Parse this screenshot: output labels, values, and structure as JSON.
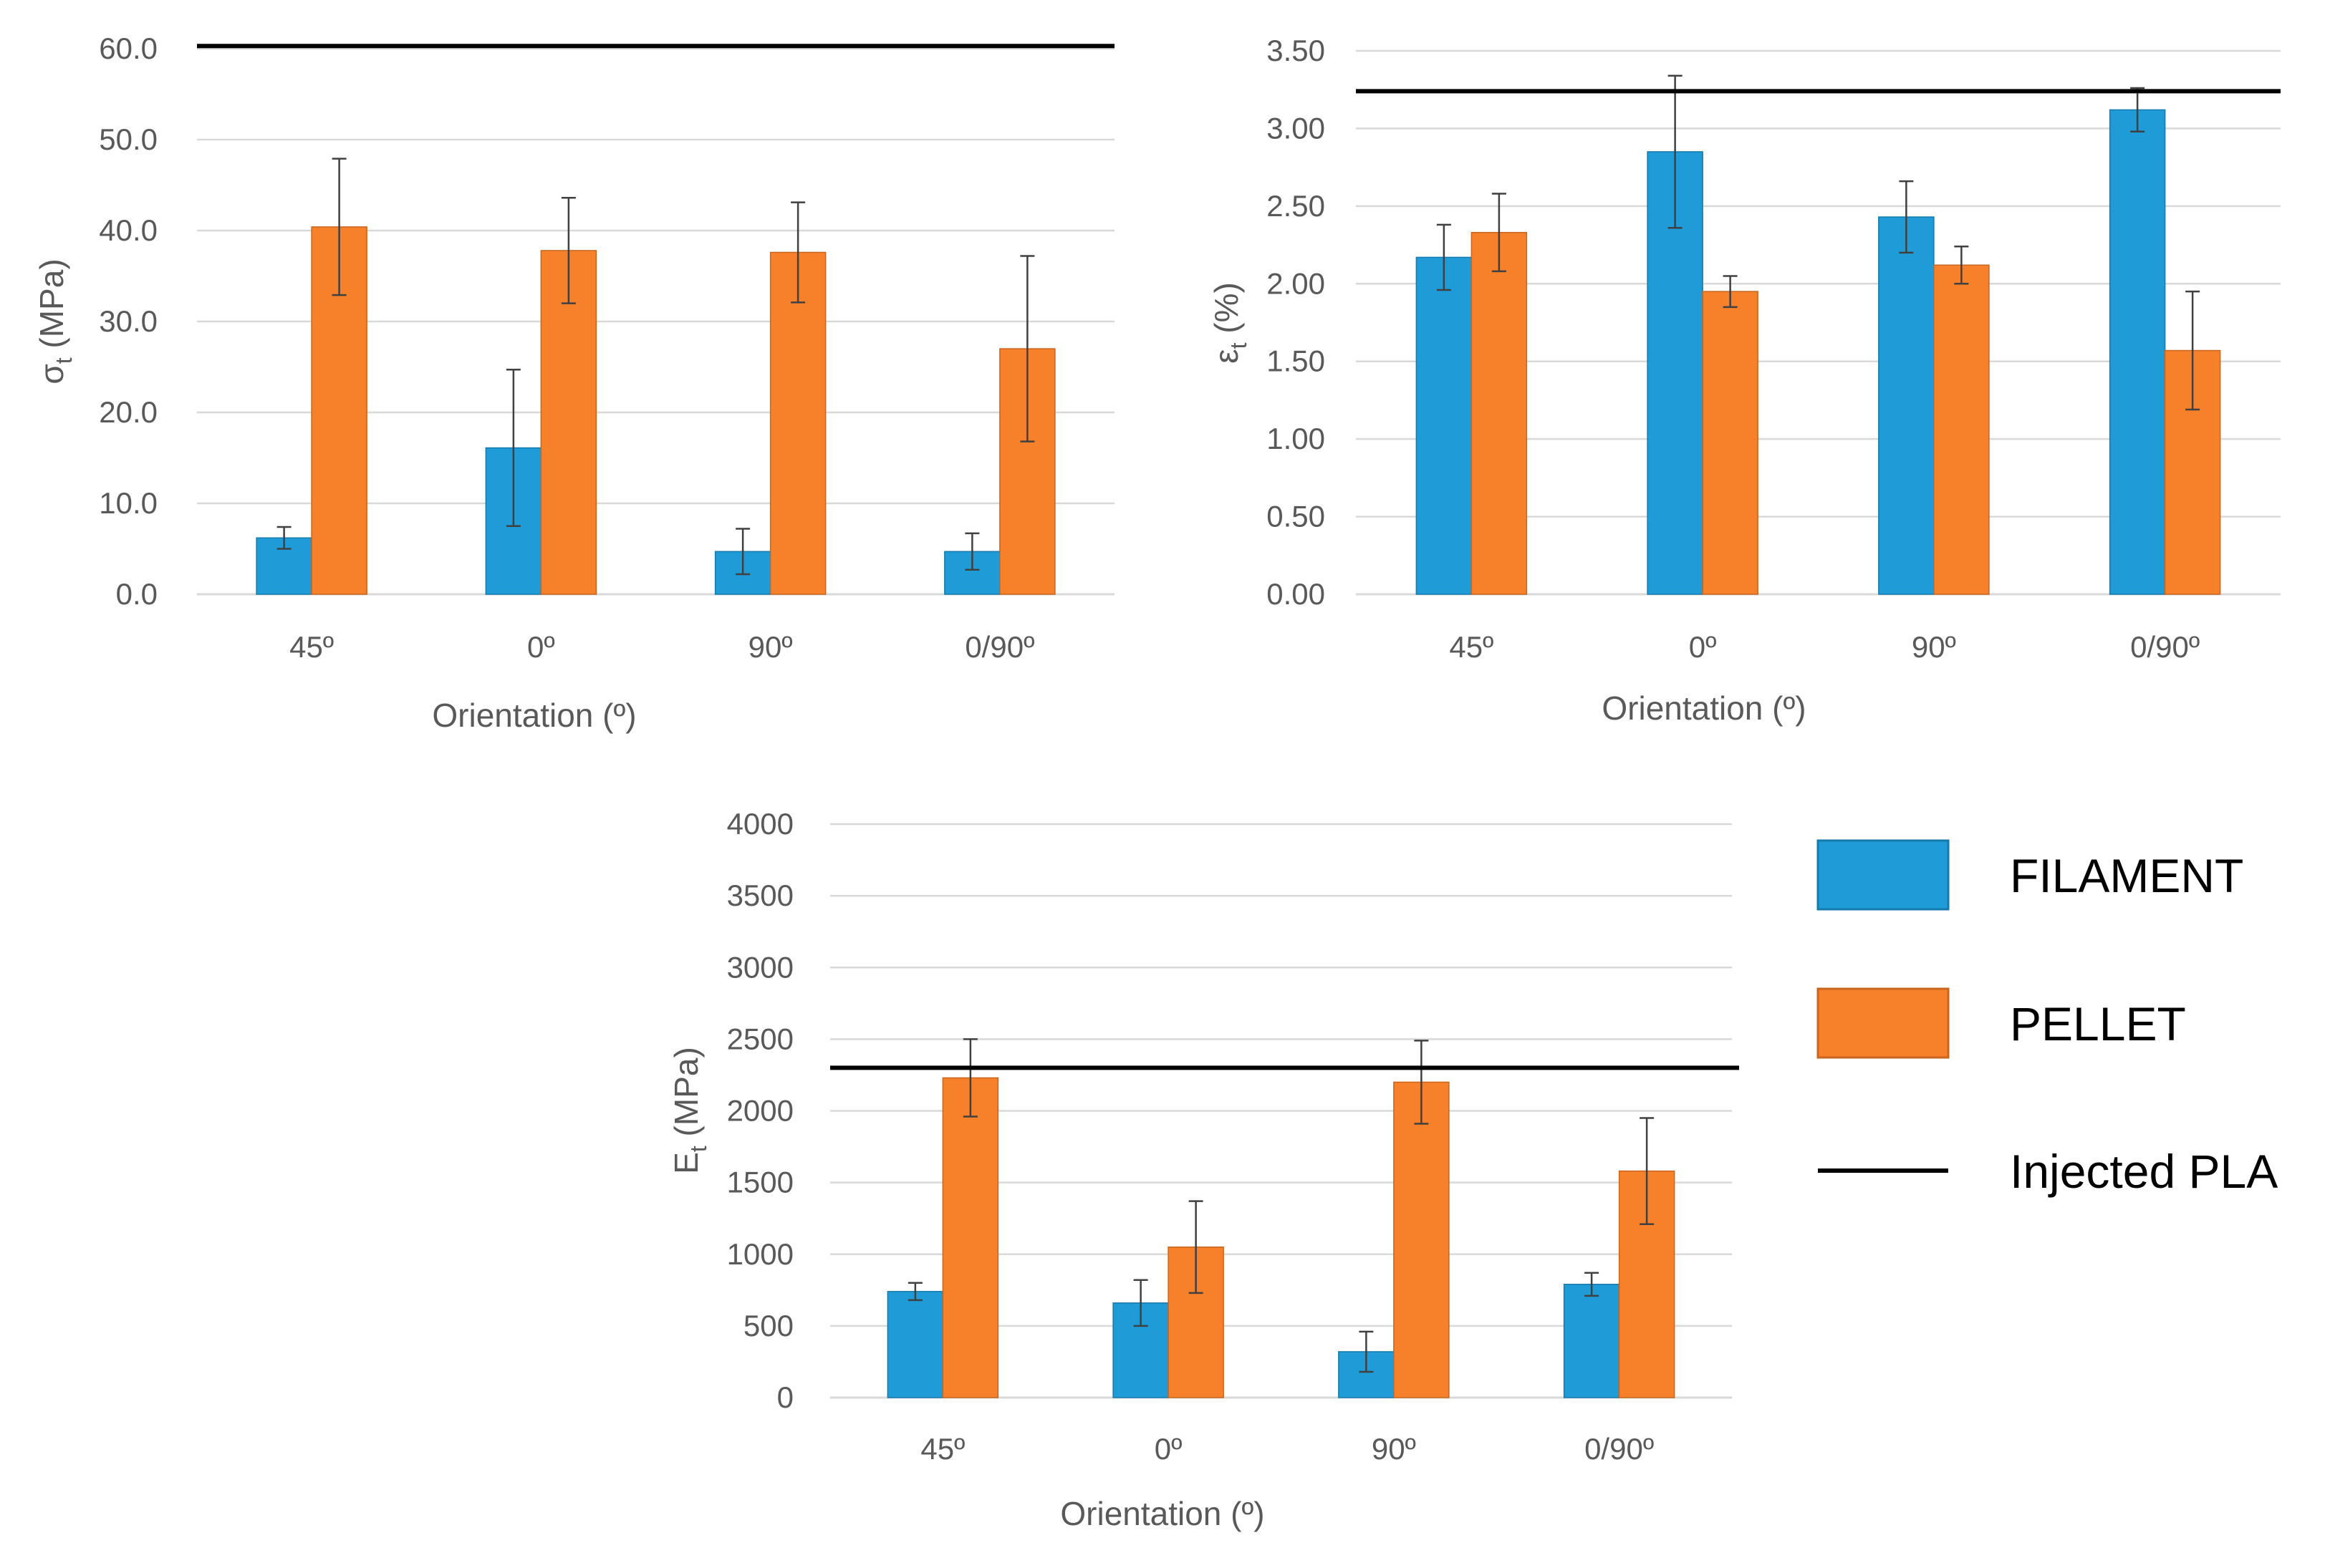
{
  "colors": {
    "filament": "#1f9bd7",
    "filament_edge": "#157aad",
    "pellet": "#f7802a",
    "pellet_edge": "#c9651d",
    "reference": "#000000"
  },
  "legend": [
    {
      "key": "filament",
      "label": "FILAMENT",
      "marker": "box"
    },
    {
      "key": "pellet",
      "label": "PELLET",
      "marker": "box"
    },
    {
      "key": "reference",
      "label": "Injected PLA",
      "marker": "line"
    }
  ],
  "chart_data": [
    {
      "type": "bar",
      "id": "stress",
      "title": "",
      "xlabel": "Orientation (º)",
      "ylabel_main": "σ",
      "ylabel_sub": "t",
      "ylabel_unit": " (MPa)",
      "categories": [
        "45º",
        "0º",
        "90º",
        "0/90º"
      ],
      "ylim": [
        0,
        60
      ],
      "yticks": [
        "0.0",
        "10.0",
        "20.0",
        "30.0",
        "40.0",
        "50.0",
        "60.0"
      ],
      "series": [
        {
          "name": "FILAMENT",
          "key": "filament",
          "values": [
            6.2,
            16.1,
            4.7,
            4.7
          ],
          "errors": [
            1.2,
            8.6,
            2.5,
            2.0
          ]
        },
        {
          "name": "PELLET",
          "key": "pellet",
          "values": [
            40.4,
            37.8,
            37.6,
            27.0
          ],
          "errors": [
            7.5,
            5.8,
            5.5,
            10.2
          ]
        }
      ],
      "reference": {
        "name": "Injected PLA",
        "value": 60.3
      }
    },
    {
      "type": "bar",
      "id": "strain",
      "title": "",
      "xlabel": "Orientation (º)",
      "ylabel_main": "ε",
      "ylabel_sub": "t",
      "ylabel_unit": " (%)",
      "categories": [
        "45º",
        "0º",
        "90º",
        "0/90º"
      ],
      "ylim": [
        0,
        3.5
      ],
      "yticks": [
        "0.00",
        "0.50",
        "1.00",
        "1.50",
        "2.00",
        "2.50",
        "3.00",
        "3.50"
      ],
      "series": [
        {
          "name": "FILAMENT",
          "key": "filament",
          "values": [
            2.17,
            2.85,
            2.43,
            3.12
          ],
          "errors": [
            0.21,
            0.49,
            0.23,
            0.14
          ]
        },
        {
          "name": "PELLET",
          "key": "pellet",
          "values": [
            2.33,
            1.95,
            2.12,
            1.57
          ],
          "errors": [
            0.25,
            0.1,
            0.12,
            0.38
          ]
        }
      ],
      "reference": {
        "name": "Injected PLA",
        "value": 3.24
      }
    },
    {
      "type": "bar",
      "id": "modulus",
      "title": "",
      "xlabel": "Orientation (º)",
      "ylabel_main": "E",
      "ylabel_sub": "t",
      "ylabel_unit": " (MPa)",
      "categories": [
        "45º",
        "0º",
        "90º",
        "0/90º"
      ],
      "ylim": [
        0,
        4000
      ],
      "yticks": [
        "0",
        "500",
        "1000",
        "1500",
        "2000",
        "2500",
        "3000",
        "3500",
        "4000"
      ],
      "series": [
        {
          "name": "FILAMENT",
          "key": "filament",
          "values": [
            740,
            660,
            320,
            790
          ],
          "errors": [
            60,
            160,
            140,
            80
          ]
        },
        {
          "name": "PELLET",
          "key": "pellet",
          "values": [
            2230,
            1050,
            2200,
            1580
          ],
          "errors": [
            270,
            320,
            290,
            370
          ]
        }
      ],
      "reference": {
        "name": "Injected PLA",
        "value": 2300
      }
    }
  ]
}
